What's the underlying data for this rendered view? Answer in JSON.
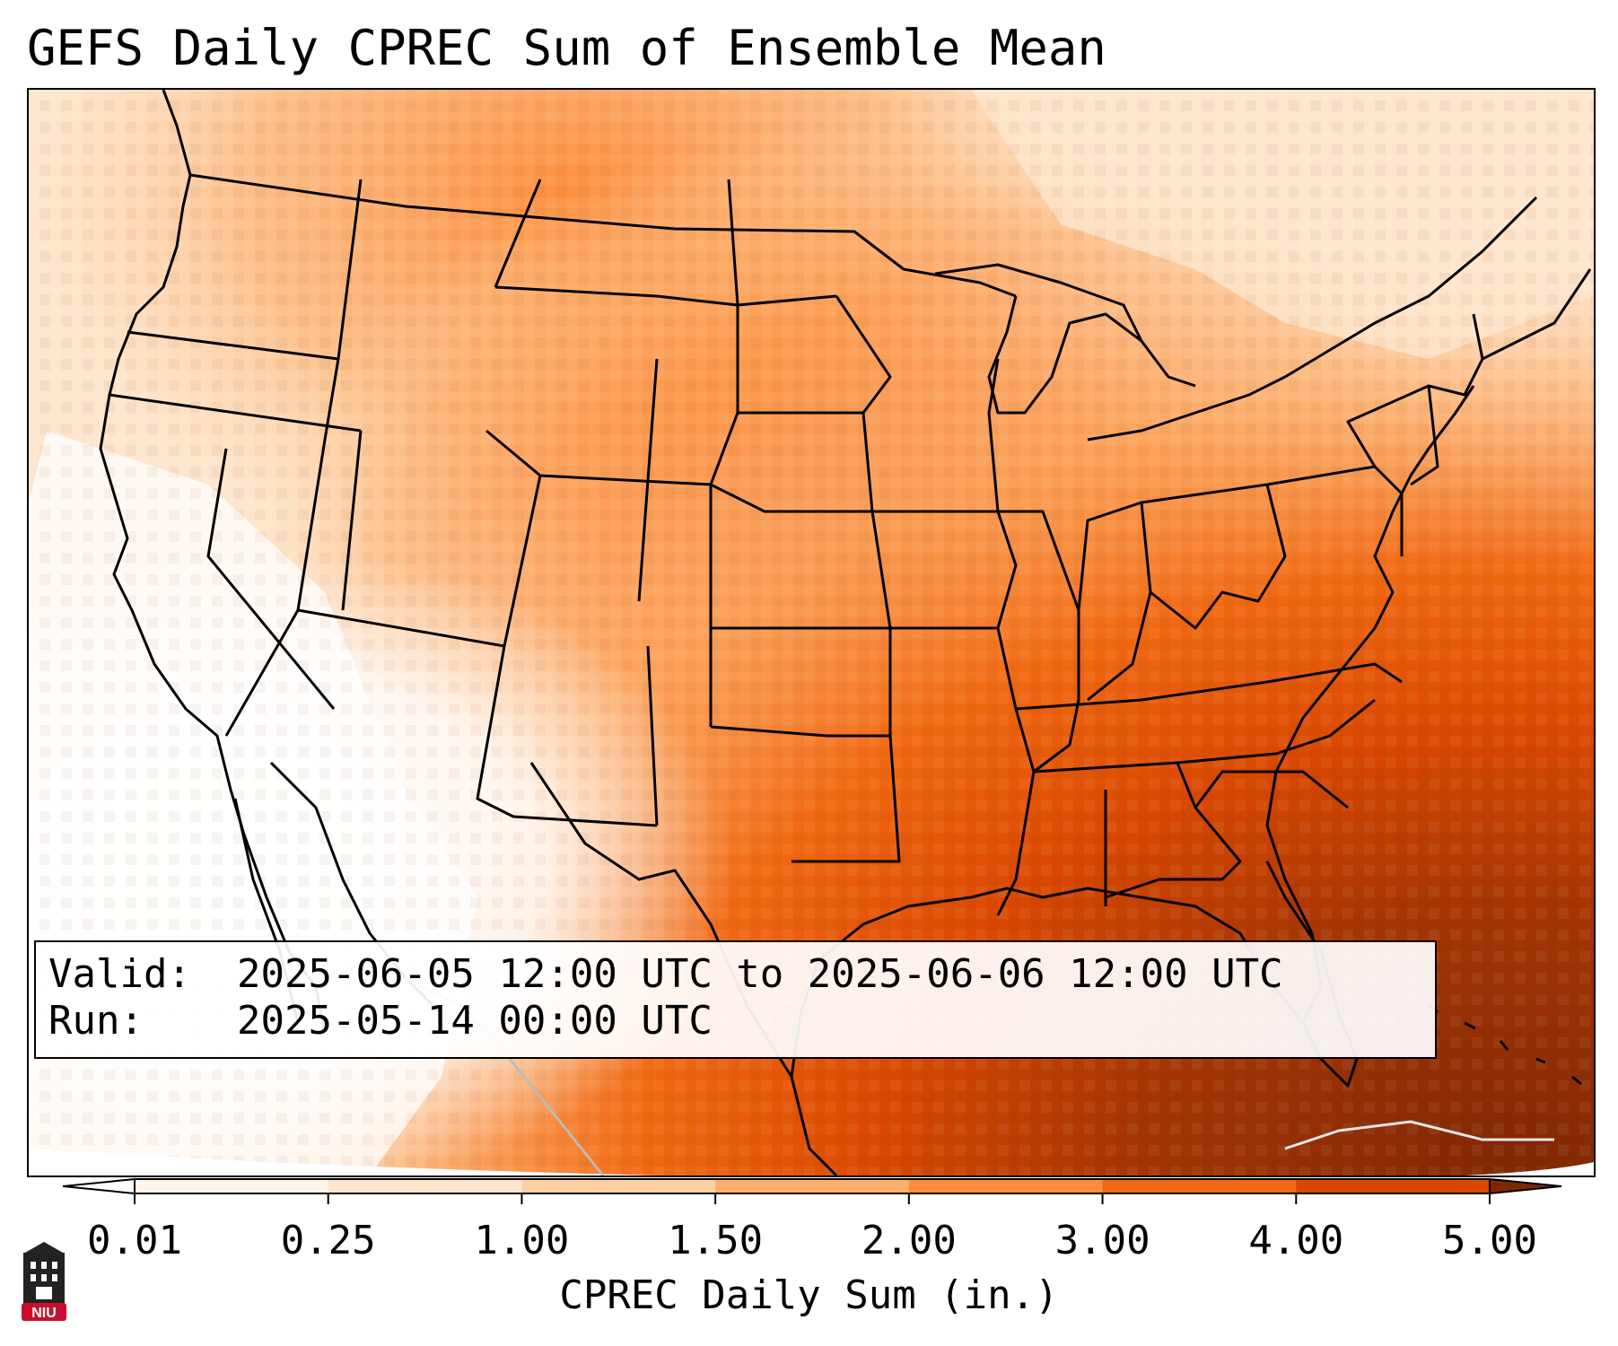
{
  "title": "GEFS Daily CPREC Sum of Ensemble Mean",
  "info": {
    "valid_label": "Valid:",
    "valid_value": "2025-06-05 12:00 UTC to 2025-06-06 12:00 UTC",
    "run_label": "Run:",
    "run_value": "2025-05-14 00:00 UTC"
  },
  "colorbar": {
    "label": "CPREC Daily Sum (in.)",
    "ticks": [
      "0.01",
      "0.25",
      "1.00",
      "1.50",
      "2.00",
      "3.00",
      "4.00",
      "5.00"
    ],
    "colors": [
      "#fff5eb",
      "#fee6ce",
      "#fdd0a2",
      "#fdae6b",
      "#fd8d3c",
      "#f16913",
      "#d94801",
      "#8c2d04"
    ],
    "under_color": "#ffffff",
    "over_color": "#7f2704",
    "extend": "both"
  },
  "logo": {
    "text": "NIU",
    "colors": {
      "tower": "#222222",
      "band": "#c8102e"
    }
  }
}
